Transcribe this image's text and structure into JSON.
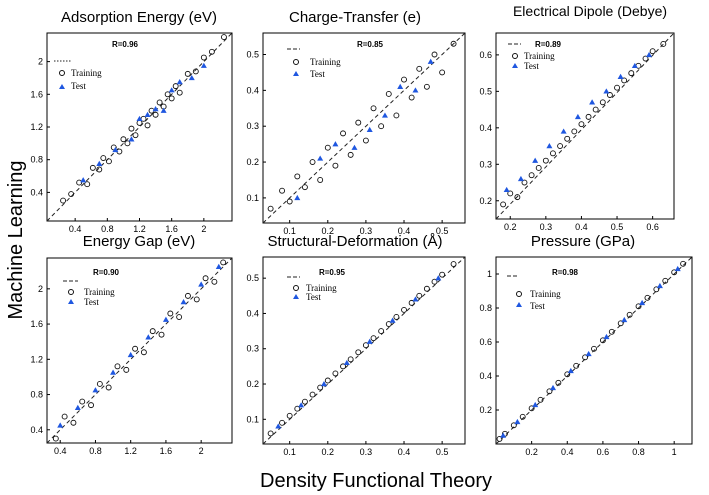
{
  "figure": {
    "ylabel": "Machine Learning",
    "xlabel": "Density Functional Theory",
    "colors": {
      "training": "#111111",
      "test": "#1f57e0",
      "diagonal": "#222222"
    }
  },
  "chart_data": [
    {
      "type": "scatter",
      "title": "Adsorption Energy (eV)",
      "xlabel": "Energy Gap (eV)",
      "r_label": "R=0.96",
      "legend": [
        "Training",
        "Test"
      ],
      "xlim": [
        0.05,
        2.35
      ],
      "ylim": [
        0.05,
        2.35
      ],
      "xticks": [
        "0.4",
        "0.8",
        "1.2",
        "1.6",
        "2"
      ],
      "yticks": [
        "0.4",
        "0.8",
        "1.2",
        "1.6",
        "2"
      ],
      "xtick_values": [
        0.4,
        0.8,
        1.2,
        1.6,
        2.0
      ],
      "ytick_values": [
        0.4,
        0.8,
        1.2,
        1.6,
        2.0
      ],
      "series": [
        {
          "name": "Training",
          "points": [
            [
              0.25,
              0.3
            ],
            [
              0.35,
              0.38
            ],
            [
              0.45,
              0.52
            ],
            [
              0.55,
              0.5
            ],
            [
              0.62,
              0.7
            ],
            [
              0.7,
              0.68
            ],
            [
              0.75,
              0.82
            ],
            [
              0.82,
              0.78
            ],
            [
              0.88,
              0.95
            ],
            [
              0.95,
              0.9
            ],
            [
              1.0,
              1.05
            ],
            [
              1.05,
              1.0
            ],
            [
              1.1,
              1.18
            ],
            [
              1.15,
              1.1
            ],
            [
              1.2,
              1.25
            ],
            [
              1.25,
              1.3
            ],
            [
              1.3,
              1.22
            ],
            [
              1.35,
              1.4
            ],
            [
              1.4,
              1.35
            ],
            [
              1.45,
              1.5
            ],
            [
              1.5,
              1.45
            ],
            [
              1.55,
              1.6
            ],
            [
              1.6,
              1.55
            ],
            [
              1.65,
              1.7
            ],
            [
              1.7,
              1.62
            ],
            [
              1.8,
              1.85
            ],
            [
              1.9,
              1.88
            ],
            [
              2.0,
              2.05
            ],
            [
              2.1,
              2.12
            ],
            [
              2.25,
              2.3
            ]
          ]
        },
        {
          "name": "Test",
          "points": [
            [
              0.5,
              0.55
            ],
            [
              0.7,
              0.75
            ],
            [
              0.9,
              0.92
            ],
            [
              1.1,
              1.05
            ],
            [
              1.2,
              1.3
            ],
            [
              1.3,
              1.35
            ],
            [
              1.4,
              1.42
            ],
            [
              1.5,
              1.4
            ],
            [
              1.6,
              1.65
            ],
            [
              1.7,
              1.75
            ],
            [
              1.85,
              1.8
            ],
            [
              2.0,
              1.95
            ]
          ]
        }
      ]
    },
    {
      "type": "scatter",
      "title": "Charge-Transfer (e)",
      "xlabel": "Structural-Deformation (Å)",
      "r_label": "R=0.85",
      "legend": [
        "Training",
        "Test"
      ],
      "xlim": [
        0.03,
        0.56
      ],
      "ylim": [
        0.03,
        0.56
      ],
      "xticks": [
        "0.1",
        "0.2",
        "0.3",
        "0.4",
        "0.5"
      ],
      "yticks": [
        "0.1",
        "0.2",
        "0.3",
        "0.4",
        "0.5"
      ],
      "xtick_values": [
        0.1,
        0.2,
        0.3,
        0.4,
        0.5
      ],
      "ytick_values": [
        0.1,
        0.2,
        0.3,
        0.4,
        0.5
      ],
      "series": [
        {
          "name": "Training",
          "points": [
            [
              0.05,
              0.07
            ],
            [
              0.08,
              0.12
            ],
            [
              0.1,
              0.09
            ],
            [
              0.12,
              0.16
            ],
            [
              0.14,
              0.13
            ],
            [
              0.16,
              0.2
            ],
            [
              0.18,
              0.15
            ],
            [
              0.2,
              0.24
            ],
            [
              0.22,
              0.19
            ],
            [
              0.24,
              0.28
            ],
            [
              0.26,
              0.22
            ],
            [
              0.28,
              0.31
            ],
            [
              0.3,
              0.26
            ],
            [
              0.32,
              0.35
            ],
            [
              0.34,
              0.3
            ],
            [
              0.36,
              0.39
            ],
            [
              0.38,
              0.33
            ],
            [
              0.4,
              0.43
            ],
            [
              0.42,
              0.38
            ],
            [
              0.44,
              0.46
            ],
            [
              0.46,
              0.41
            ],
            [
              0.48,
              0.5
            ],
            [
              0.5,
              0.45
            ],
            [
              0.53,
              0.53
            ]
          ]
        },
        {
          "name": "Test",
          "points": [
            [
              0.12,
              0.1
            ],
            [
              0.18,
              0.21
            ],
            [
              0.22,
              0.25
            ],
            [
              0.27,
              0.24
            ],
            [
              0.31,
              0.29
            ],
            [
              0.35,
              0.33
            ],
            [
              0.39,
              0.41
            ],
            [
              0.43,
              0.4
            ],
            [
              0.47,
              0.48
            ]
          ]
        }
      ]
    },
    {
      "type": "scatter",
      "title": "Electrical Dipole (Debye)",
      "xlabel": "Pressure (GPa)",
      "r_label": "R=0.89",
      "legend": [
        "Training",
        "Test"
      ],
      "xlim": [
        0.16,
        0.66
      ],
      "ylim": [
        0.15,
        0.66
      ],
      "xticks": [
        "0.2",
        "0.3",
        "0.4",
        "0.5",
        "0.6"
      ],
      "yticks": [
        "0.2",
        "0.3",
        "0.4",
        "0.5",
        "0.6"
      ],
      "xtick_values": [
        0.2,
        0.3,
        0.4,
        0.5,
        0.6
      ],
      "ytick_values": [
        0.2,
        0.3,
        0.4,
        0.5,
        0.6
      ],
      "series": [
        {
          "name": "Training",
          "points": [
            [
              0.18,
              0.19
            ],
            [
              0.2,
              0.22
            ],
            [
              0.22,
              0.21
            ],
            [
              0.24,
              0.25
            ],
            [
              0.26,
              0.27
            ],
            [
              0.28,
              0.29
            ],
            [
              0.3,
              0.31
            ],
            [
              0.32,
              0.33
            ],
            [
              0.34,
              0.35
            ],
            [
              0.36,
              0.37
            ],
            [
              0.38,
              0.39
            ],
            [
              0.4,
              0.41
            ],
            [
              0.42,
              0.43
            ],
            [
              0.44,
              0.45
            ],
            [
              0.46,
              0.47
            ],
            [
              0.48,
              0.49
            ],
            [
              0.5,
              0.51
            ],
            [
              0.52,
              0.53
            ],
            [
              0.54,
              0.55
            ],
            [
              0.56,
              0.57
            ],
            [
              0.58,
              0.59
            ],
            [
              0.6,
              0.61
            ],
            [
              0.63,
              0.63
            ]
          ]
        },
        {
          "name": "Test",
          "points": [
            [
              0.19,
              0.23
            ],
            [
              0.23,
              0.26
            ],
            [
              0.27,
              0.31
            ],
            [
              0.31,
              0.35
            ],
            [
              0.35,
              0.39
            ],
            [
              0.39,
              0.43
            ],
            [
              0.43,
              0.47
            ],
            [
              0.47,
              0.5
            ],
            [
              0.51,
              0.54
            ],
            [
              0.55,
              0.57
            ],
            [
              0.59,
              0.6
            ]
          ]
        }
      ]
    },
    {
      "type": "scatter",
      "title": "",
      "xlabel": "",
      "r_label": "R=0.90",
      "legend": [
        "Training",
        "Test"
      ],
      "xlim": [
        0.25,
        2.35
      ],
      "ylim": [
        0.25,
        2.35
      ],
      "xticks": [
        "0.4",
        "0.8",
        "1.2",
        "1.6",
        "2"
      ],
      "yticks": [
        "0.4",
        "0.8",
        "1.2",
        "1.6",
        "2"
      ],
      "xtick_values": [
        0.4,
        0.8,
        1.2,
        1.6,
        2.0
      ],
      "ytick_values": [
        0.4,
        0.8,
        1.2,
        1.6,
        2.0
      ],
      "series": [
        {
          "name": "Training",
          "points": [
            [
              0.35,
              0.3
            ],
            [
              0.45,
              0.55
            ],
            [
              0.55,
              0.48
            ],
            [
              0.65,
              0.72
            ],
            [
              0.75,
              0.68
            ],
            [
              0.85,
              0.92
            ],
            [
              0.95,
              0.88
            ],
            [
              1.05,
              1.12
            ],
            [
              1.15,
              1.08
            ],
            [
              1.25,
              1.32
            ],
            [
              1.35,
              1.28
            ],
            [
              1.45,
              1.52
            ],
            [
              1.55,
              1.48
            ],
            [
              1.65,
              1.72
            ],
            [
              1.75,
              1.68
            ],
            [
              1.85,
              1.92
            ],
            [
              1.95,
              1.88
            ],
            [
              2.05,
              2.12
            ],
            [
              2.15,
              2.08
            ],
            [
              2.25,
              2.3
            ]
          ]
        },
        {
          "name": "Test",
          "points": [
            [
              0.4,
              0.45
            ],
            [
              0.6,
              0.65
            ],
            [
              0.8,
              0.85
            ],
            [
              1.0,
              1.05
            ],
            [
              1.2,
              1.25
            ],
            [
              1.4,
              1.45
            ],
            [
              1.6,
              1.65
            ],
            [
              1.8,
              1.85
            ],
            [
              2.0,
              2.05
            ],
            [
              2.2,
              2.25
            ]
          ]
        }
      ]
    },
    {
      "type": "scatter",
      "title": "",
      "xlabel": "",
      "r_label": "R=0.95",
      "legend": [
        "Training",
        "Test"
      ],
      "xlim": [
        0.03,
        0.56
      ],
      "ylim": [
        0.03,
        0.56
      ],
      "xticks": [
        "0.1",
        "0.2",
        "0.3",
        "0.4",
        "0.5"
      ],
      "yticks": [
        "0.1",
        "0.2",
        "0.3",
        "0.4",
        "0.5"
      ],
      "xtick_values": [
        0.1,
        0.2,
        0.3,
        0.4,
        0.5
      ],
      "ytick_values": [
        0.1,
        0.2,
        0.3,
        0.4,
        0.5
      ],
      "series": [
        {
          "name": "Training",
          "points": [
            [
              0.05,
              0.06
            ],
            [
              0.08,
              0.09
            ],
            [
              0.1,
              0.11
            ],
            [
              0.12,
              0.13
            ],
            [
              0.14,
              0.15
            ],
            [
              0.16,
              0.17
            ],
            [
              0.18,
              0.19
            ],
            [
              0.2,
              0.21
            ],
            [
              0.22,
              0.23
            ],
            [
              0.24,
              0.25
            ],
            [
              0.26,
              0.27
            ],
            [
              0.28,
              0.29
            ],
            [
              0.3,
              0.31
            ],
            [
              0.32,
              0.33
            ],
            [
              0.34,
              0.35
            ],
            [
              0.36,
              0.37
            ],
            [
              0.38,
              0.39
            ],
            [
              0.4,
              0.41
            ],
            [
              0.42,
              0.43
            ],
            [
              0.44,
              0.45
            ],
            [
              0.46,
              0.47
            ],
            [
              0.48,
              0.49
            ],
            [
              0.5,
              0.51
            ],
            [
              0.53,
              0.54
            ]
          ]
        },
        {
          "name": "Test",
          "points": [
            [
              0.07,
              0.08
            ],
            [
              0.13,
              0.14
            ],
            [
              0.19,
              0.2
            ],
            [
              0.25,
              0.26
            ],
            [
              0.31,
              0.32
            ],
            [
              0.37,
              0.38
            ],
            [
              0.43,
              0.44
            ],
            [
              0.49,
              0.5
            ]
          ]
        }
      ]
    },
    {
      "type": "scatter",
      "title": "",
      "xlabel": "",
      "r_label": "R=0.98",
      "legend": [
        "Training",
        "Test"
      ],
      "xlim": [
        0.0,
        1.1
      ],
      "ylim": [
        0.0,
        1.1
      ],
      "xticks": [
        "0.2",
        "0.4",
        "0.6",
        "0.8",
        "1"
      ],
      "yticks": [
        "0.2",
        "0.4",
        "0.6",
        "0.8",
        "1"
      ],
      "xtick_values": [
        0.2,
        0.4,
        0.6,
        0.8,
        1.0
      ],
      "ytick_values": [
        0.2,
        0.4,
        0.6,
        0.8,
        1.0
      ],
      "series": [
        {
          "name": "Training",
          "points": [
            [
              0.02,
              0.03
            ],
            [
              0.05,
              0.06
            ],
            [
              0.1,
              0.11
            ],
            [
              0.15,
              0.16
            ],
            [
              0.2,
              0.21
            ],
            [
              0.25,
              0.26
            ],
            [
              0.3,
              0.31
            ],
            [
              0.35,
              0.36
            ],
            [
              0.4,
              0.41
            ],
            [
              0.45,
              0.46
            ],
            [
              0.5,
              0.51
            ],
            [
              0.55,
              0.56
            ],
            [
              0.6,
              0.61
            ],
            [
              0.65,
              0.66
            ],
            [
              0.7,
              0.71
            ],
            [
              0.75,
              0.76
            ],
            [
              0.8,
              0.81
            ],
            [
              0.85,
              0.86
            ],
            [
              0.9,
              0.91
            ],
            [
              0.95,
              0.96
            ],
            [
              1.0,
              1.01
            ],
            [
              1.05,
              1.06
            ]
          ]
        },
        {
          "name": "Test",
          "points": [
            [
              0.04,
              0.05
            ],
            [
              0.12,
              0.13
            ],
            [
              0.22,
              0.23
            ],
            [
              0.32,
              0.33
            ],
            [
              0.42,
              0.43
            ],
            [
              0.52,
              0.53
            ],
            [
              0.62,
              0.63
            ],
            [
              0.72,
              0.73
            ],
            [
              0.82,
              0.83
            ],
            [
              0.92,
              0.93
            ],
            [
              1.02,
              1.03
            ]
          ]
        }
      ]
    }
  ]
}
